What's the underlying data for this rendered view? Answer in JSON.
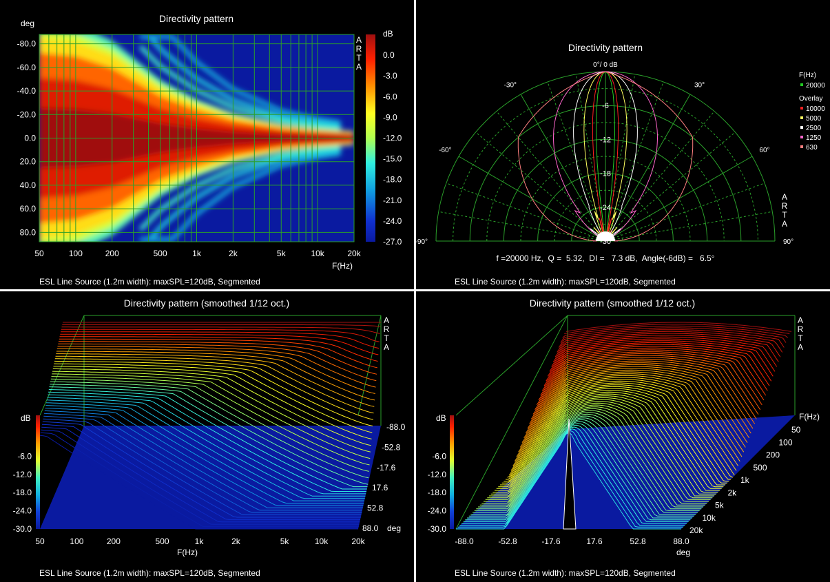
{
  "colors": {
    "background": "#000000",
    "separator": "#ffffff",
    "grid": "#2aa02a",
    "text": "#ffffff",
    "heatmap_min": "#0a1aa0",
    "heatmap_max": "#b01010"
  },
  "panels": {
    "top_left": {
      "title": "Directivity pattern",
      "y_unit": "deg",
      "x_unit": "F(Hz)",
      "brand": "ARTA",
      "colorbar_unit": "dB",
      "footer": "ESL Line Source (1.2m width): maxSPL=120dB, Segmented"
    },
    "top_right": {
      "title": "Directivity pattern",
      "top_label": "0°/ 0 dB",
      "brand": "ARTA",
      "legend_header": "F(Hz)",
      "legend_main": "20000",
      "legend_overlay_header": "Overlay",
      "legend_overlay": [
        "10000",
        "5000",
        "2500",
        "1250",
        "630"
      ],
      "info": "f =20000 Hz,  Q =  5.32,  DI =   7.3 dB,  Angle(-6dB) =   6.5°",
      "footer": "ESL Line Source (1.2m width): maxSPL=120dB, Segmented"
    },
    "bottom_left": {
      "title": "Directivity pattern (smoothed 1/12 oct.)",
      "brand": "ARTA",
      "z_unit": "dB",
      "x_unit": "F(Hz)",
      "angle_unit": "deg",
      "footer": "ESL Line Source (1.2m width): maxSPL=120dB, Segmented"
    },
    "bottom_right": {
      "title": "Directivity pattern (smoothed 1/12 oct.)",
      "brand": "ARTA",
      "z_unit": "dB",
      "freq_unit": "F(Hz)",
      "angle_unit": "deg",
      "footer": "ESL Line Source (1.2m width): maxSPL=120dB, Segmented"
    }
  },
  "chart_data": [
    {
      "type": "heatmap",
      "title": "Directivity pattern",
      "xlabel": "F(Hz)",
      "ylabel": "deg",
      "x_scale": "log",
      "xlim": [
        50,
        20000
      ],
      "ylim": [
        -88,
        88
      ],
      "x_ticks": [
        "50",
        "100",
        "200",
        "500",
        "1k",
        "2k",
        "5k",
        "10k",
        "20k"
      ],
      "y_ticks": [
        "-80.0",
        "-60.0",
        "-40.0",
        "-20.0",
        "0.0",
        "20.0",
        "40.0",
        "60.0",
        "80.0"
      ],
      "colorbar_ticks": [
        "0.0",
        "-3.0",
        "-6.0",
        "-9.0",
        "-12.0",
        "-15.0",
        "-18.0",
        "-21.0",
        "-24.0",
        "-27.0"
      ],
      "zlim": [
        -27,
        3
      ],
      "notes_beam_half_width_deg": {
        "50": 85,
        "100": 82,
        "200": 70,
        "500": 42,
        "1k": 28,
        "2k": 18,
        "5k": 10,
        "10k": 7,
        "20k": 5
      }
    },
    {
      "type": "polar",
      "title": "Directivity pattern",
      "angle_ticks": [
        "-90°",
        "-60°",
        "-30°",
        "0°",
        "30°",
        "60°",
        "90°"
      ],
      "radial_ticks": [
        "-6",
        "-12",
        "-18",
        "-24",
        "-30"
      ],
      "rlim": [
        -30,
        0
      ],
      "series": [
        {
          "name": "20000",
          "color": "#22cc22"
        },
        {
          "name": "10000",
          "color": "#ff2020"
        },
        {
          "name": "5000",
          "color": "#ffff60"
        },
        {
          "name": "2500",
          "color": "#ffffff"
        },
        {
          "name": "1250",
          "color": "#ff66cc"
        },
        {
          "name": "630",
          "color": "#ff8080"
        }
      ],
      "info": {
        "f_hz": 20000,
        "Q": 5.32,
        "DI_dB": 7.3,
        "angle_minus6dB_deg": 6.5
      }
    },
    {
      "type": "area",
      "title": "Directivity pattern (smoothed 1/12 oct.)",
      "xlabel": "F(Hz)",
      "x_ticks": [
        "50",
        "100",
        "200",
        "500",
        "1k",
        "2k",
        "5k",
        "10k",
        "20k"
      ],
      "z_ticks": [
        "-6.0",
        "-12.0",
        "-18.0",
        "-24.0",
        "-30.0"
      ],
      "angle_ticks": [
        "-88.0",
        "-52.8",
        "-17.6",
        "17.6",
        "52.8",
        "88.0"
      ],
      "zlim": [
        -30,
        0
      ]
    },
    {
      "type": "area",
      "title": "Directivity pattern (smoothed 1/12 oct.)",
      "xlabel": "deg",
      "angle_ticks": [
        "-88.0",
        "-52.8",
        "-17.6",
        "17.6",
        "52.8",
        "88.0"
      ],
      "freq_ticks": [
        "50",
        "100",
        "200",
        "500",
        "1k",
        "2k",
        "5k",
        "10k",
        "20k"
      ],
      "z_ticks": [
        "-6.0",
        "-12.0",
        "-18.0",
        "-24.0",
        "-30.0"
      ],
      "zlim": [
        -30,
        0
      ]
    }
  ]
}
